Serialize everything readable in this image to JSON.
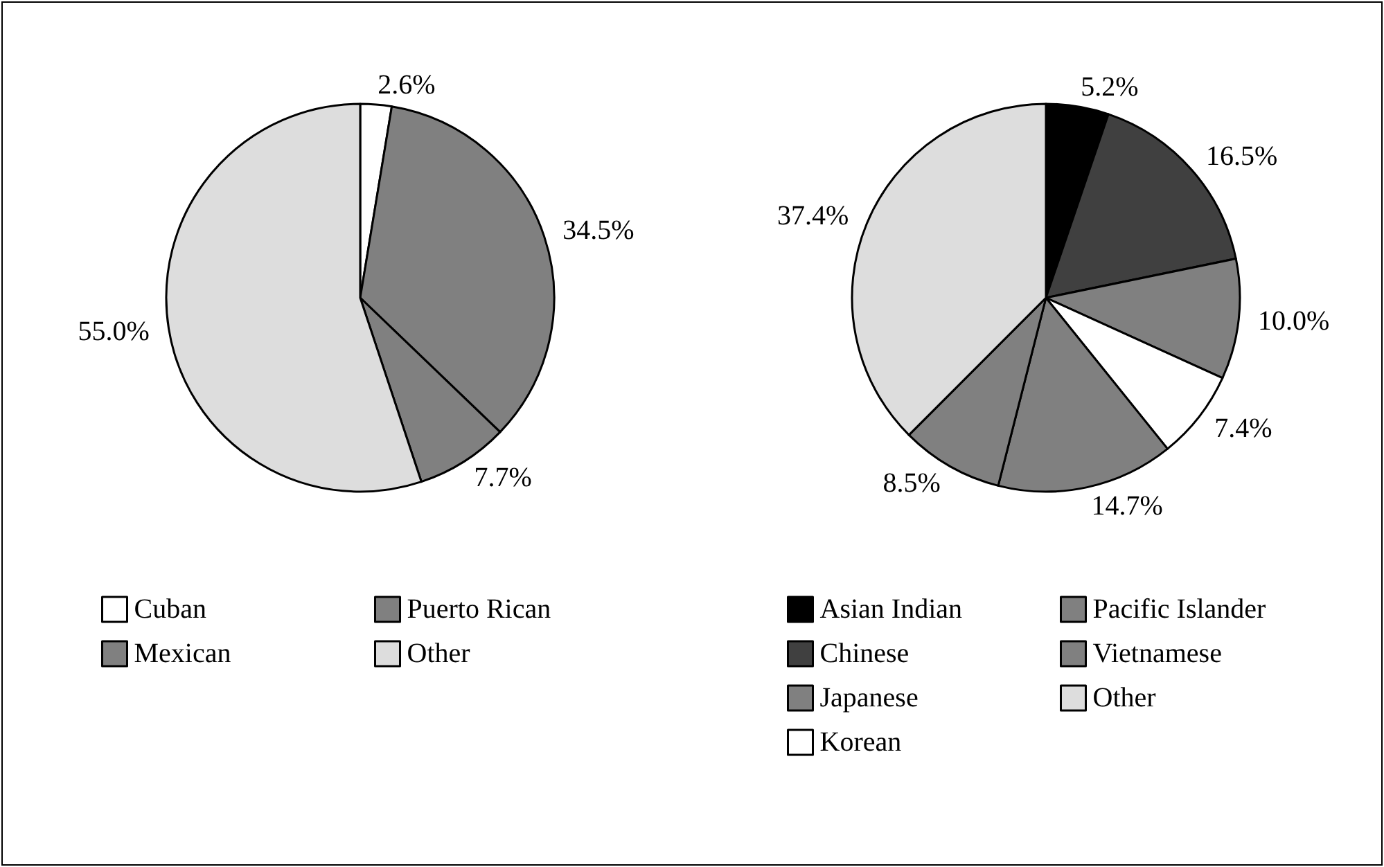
{
  "chart_data": [
    {
      "type": "pie",
      "categories": [
        "Cuban",
        "Mexican",
        "Puerto Rican",
        "Other"
      ],
      "values": [
        2.6,
        34.5,
        7.7,
        55.0
      ],
      "value_labels": [
        "2.6%",
        "34.5%",
        "7.7%",
        "55.0%"
      ],
      "colors": [
        "#ffffff",
        "#808080",
        "#808080",
        "#dddddd"
      ],
      "legend": "bottom"
    },
    {
      "type": "pie",
      "categories": [
        "Asian Indian",
        "Chinese",
        "Japanese",
        "Korean",
        "Pacific Islander",
        "Vietnamese",
        "Other"
      ],
      "values": [
        5.2,
        16.5,
        10.0,
        7.4,
        14.7,
        8.5,
        37.4
      ],
      "value_labels": [
        "5.2%",
        "16.5%",
        "10.0%",
        "7.4%",
        "14.7%",
        "8.5%",
        "37.4%"
      ],
      "colors": [
        "#000000",
        "#404040",
        "#808080",
        "#ffffff",
        "#808080",
        "#808080",
        "#dddddd"
      ],
      "legend": "bottom"
    }
  ]
}
